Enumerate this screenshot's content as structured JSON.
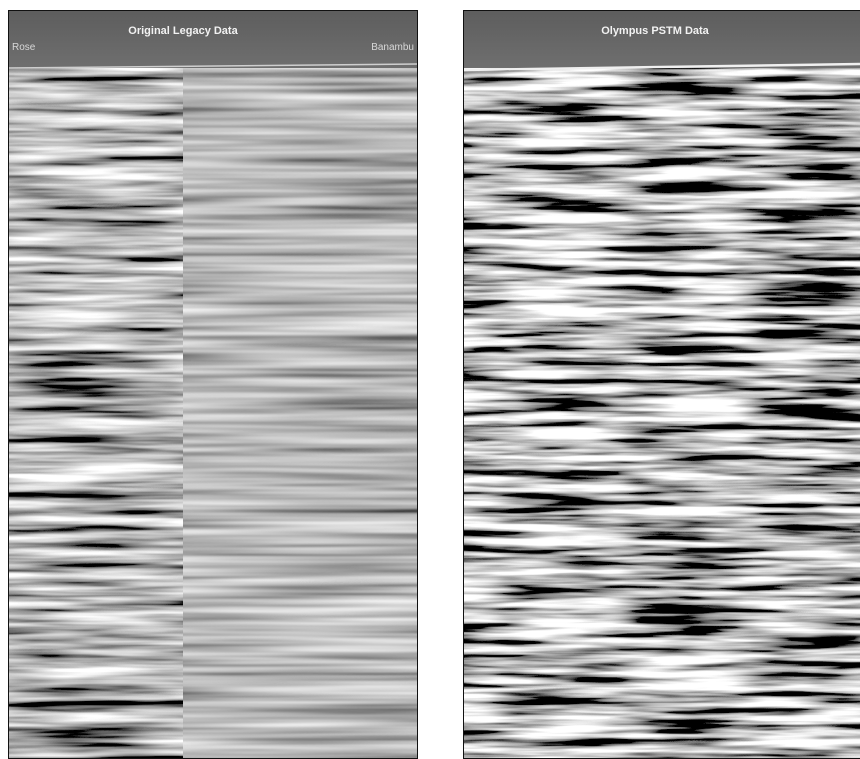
{
  "panels": [
    {
      "title": "Original Legacy Data",
      "left_label": "Rose",
      "right_label": "Banambu"
    },
    {
      "title": "Olympus PSTM Data"
    }
  ]
}
